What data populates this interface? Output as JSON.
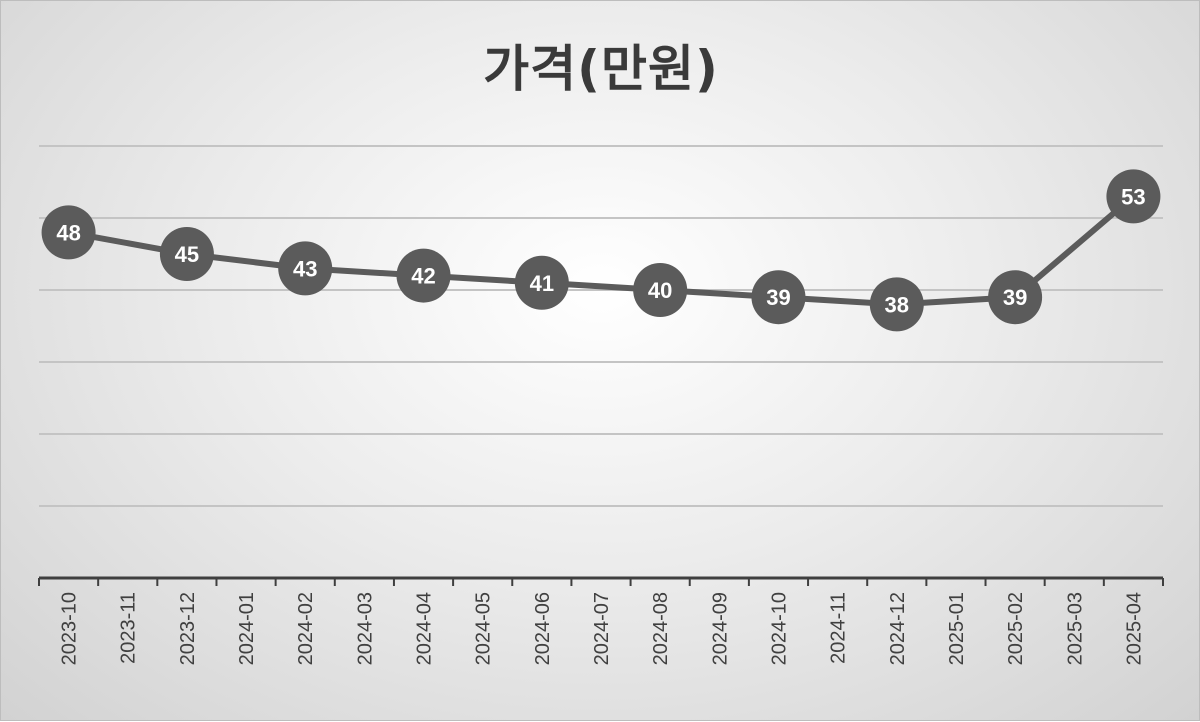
{
  "chart_data": {
    "type": "line",
    "title": "가격(만원)",
    "xlabel": "",
    "ylabel": "",
    "categories": [
      "2023-10",
      "2023-11",
      "2023-12",
      "2024-01",
      "2024-02",
      "2024-03",
      "2024-04",
      "2024-05",
      "2024-06",
      "2024-07",
      "2024-08",
      "2024-09",
      "2024-10",
      "2024-11",
      "2024-12",
      "2025-01",
      "2025-02",
      "2025-03",
      "2025-04"
    ],
    "series": [
      {
        "points": [
          {
            "x": "2023-10",
            "y": 48
          },
          {
            "x": "2023-12",
            "y": 45
          },
          {
            "x": "2024-02",
            "y": 43
          },
          {
            "x": "2024-04",
            "y": 42
          },
          {
            "x": "2024-06",
            "y": 41
          },
          {
            "x": "2024-08",
            "y": 40
          },
          {
            "x": "2024-10",
            "y": 39
          },
          {
            "x": "2024-12",
            "y": 38
          },
          {
            "x": "2025-02",
            "y": 39
          },
          {
            "x": "2025-04",
            "y": 53
          }
        ]
      }
    ],
    "ylim": [
      0,
      60
    ],
    "grid": true,
    "legend": "none",
    "colors": {
      "line": "#5b5b5b",
      "marker": "#5b5b5b",
      "label_text": "#ffffff",
      "gridline": "#c4c4c4",
      "axis": "#3f3f3f",
      "tick_label": "#404040"
    }
  }
}
